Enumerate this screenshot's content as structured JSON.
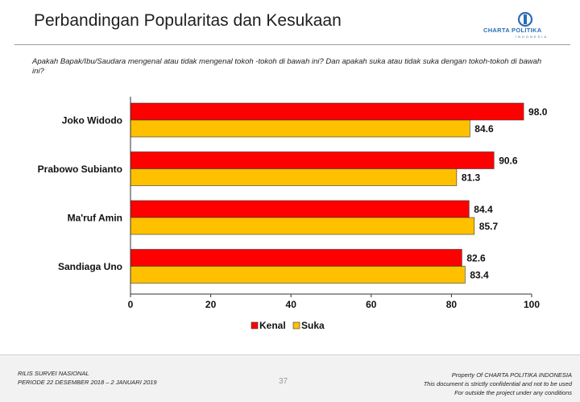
{
  "header": {
    "title": "Perbandingan Popularitas dan Kesukaan",
    "logo_name": "CHARTA POLITIKA",
    "logo_sub": "INDONESIA",
    "question": "Apakah Bapak/Ibu/Saudara mengenal atau tidak mengenal tokoh -tokoh di bawah ini? Dan apakah suka atau  tidak suka dengan tokoh-tokoh di bawah ini?"
  },
  "chart_data": {
    "type": "bar",
    "orientation": "horizontal",
    "categories": [
      "Joko Widodo",
      "Prabowo Subianto",
      "Ma'ruf Amin",
      "Sandiaga Uno"
    ],
    "series": [
      {
        "name": "Kenal",
        "values": [
          98.0,
          90.6,
          84.4,
          82.6
        ],
        "color": "#ff0000"
      },
      {
        "name": "Suka",
        "values": [
          84.6,
          81.3,
          85.7,
          83.4
        ],
        "color": "#ffc000"
      }
    ],
    "value_labels": [
      [
        "98.0",
        "90.6",
        "84.4",
        "82.6"
      ],
      [
        "84.6",
        "81.3",
        "85.7",
        "83.4"
      ]
    ],
    "xlim": [
      0,
      100
    ],
    "xticks": [
      "0",
      "20",
      "40",
      "60",
      "80",
      "100"
    ],
    "legend": "bottom",
    "grid": false
  },
  "footer": {
    "line1": "RILIS SURVEI NASIONAL",
    "line2": "PERIODE  22 DESEMBER 2018 – 2 JANUARI 2019",
    "page": "37",
    "right1": "Property Of CHARTA POLITIKA INDONESIA",
    "right2": "This document is strictly confidential and not to be used",
    "right3": "For  outside the project under any conditions"
  }
}
